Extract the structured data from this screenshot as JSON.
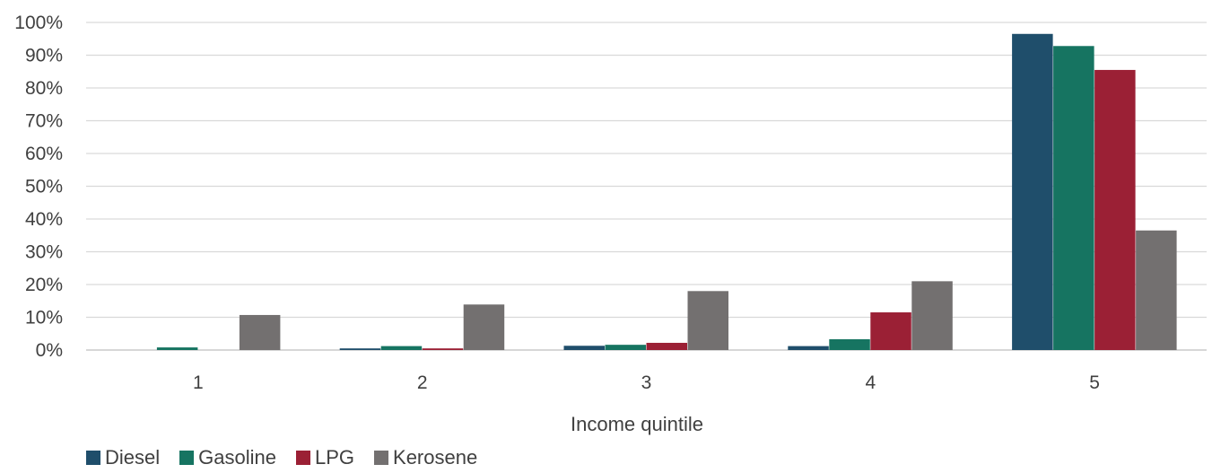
{
  "chart_data": {
    "type": "bar",
    "title": "",
    "xlabel": "Income quintile",
    "ylabel": "",
    "categories": [
      "1",
      "2",
      "3",
      "4",
      "5"
    ],
    "ylim": [
      0,
      100
    ],
    "yticks": [
      "0%",
      "10%",
      "20%",
      "30%",
      "40%",
      "50%",
      "60%",
      "70%",
      "80%",
      "90%",
      "100%"
    ],
    "grid": true,
    "legend_position": "bottom-left",
    "series": [
      {
        "name": "Diesel",
        "color": "#1f4e6b",
        "values": [
          0.0,
          0.5,
          1.3,
          1.2,
          96.5
        ]
      },
      {
        "name": "Gasoline",
        "color": "#167461",
        "values": [
          0.8,
          1.2,
          1.6,
          3.3,
          92.8
        ]
      },
      {
        "name": "LPG",
        "color": "#9b2035",
        "values": [
          0.0,
          0.5,
          2.2,
          11.5,
          85.5
        ]
      },
      {
        "name": "Kerosene",
        "color": "#737070",
        "values": [
          10.7,
          13.9,
          18.0,
          21.0,
          36.5
        ]
      }
    ]
  }
}
